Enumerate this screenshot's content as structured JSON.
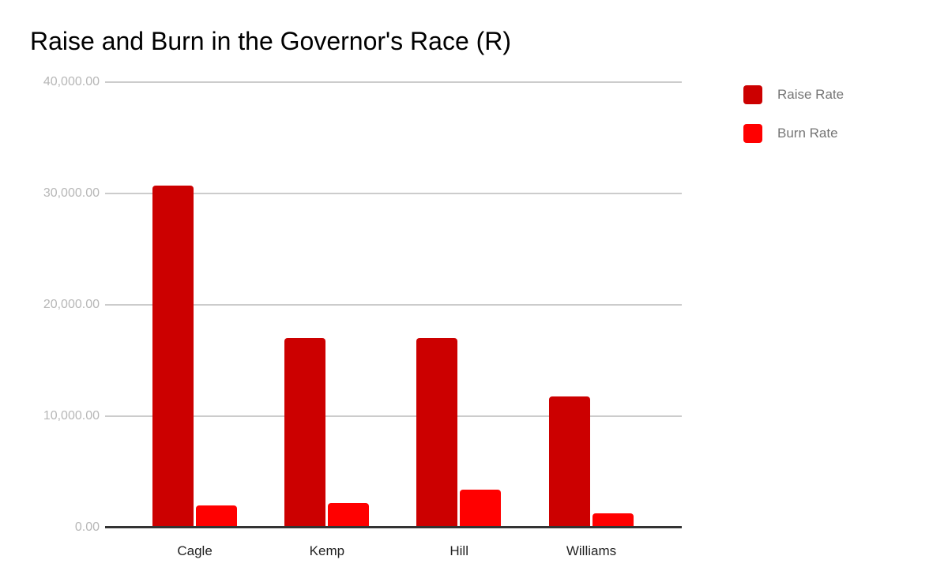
{
  "chart_data": {
    "type": "bar",
    "title": "Raise and Burn in the Governor's Race (R)",
    "categories": [
      "Cagle",
      "Kemp",
      "Hill",
      "Williams"
    ],
    "series": [
      {
        "name": "Raise Rate",
        "color": "#cc0000",
        "values": [
          30600,
          16900,
          16850,
          11650
        ]
      },
      {
        "name": "Burn Rate",
        "color": "#ff0000",
        "values": [
          1850,
          2050,
          3250,
          1150
        ]
      }
    ],
    "ylim": [
      0,
      40000
    ],
    "yticks": [
      {
        "value": 0,
        "label": "0.00"
      },
      {
        "value": 10000,
        "label": "10,000.00"
      },
      {
        "value": 20000,
        "label": "20,000.00"
      },
      {
        "value": 30000,
        "label": "30,000.00"
      },
      {
        "value": 40000,
        "label": "40,000.00"
      }
    ],
    "grid": true,
    "legend_position": "right",
    "colors": {
      "title_text": "#000000",
      "axis_tick_text": "#b7b7b7",
      "category_text": "#222222",
      "legend_text": "#757575",
      "gridline": "#cccccc",
      "baseline": "#333333"
    }
  }
}
